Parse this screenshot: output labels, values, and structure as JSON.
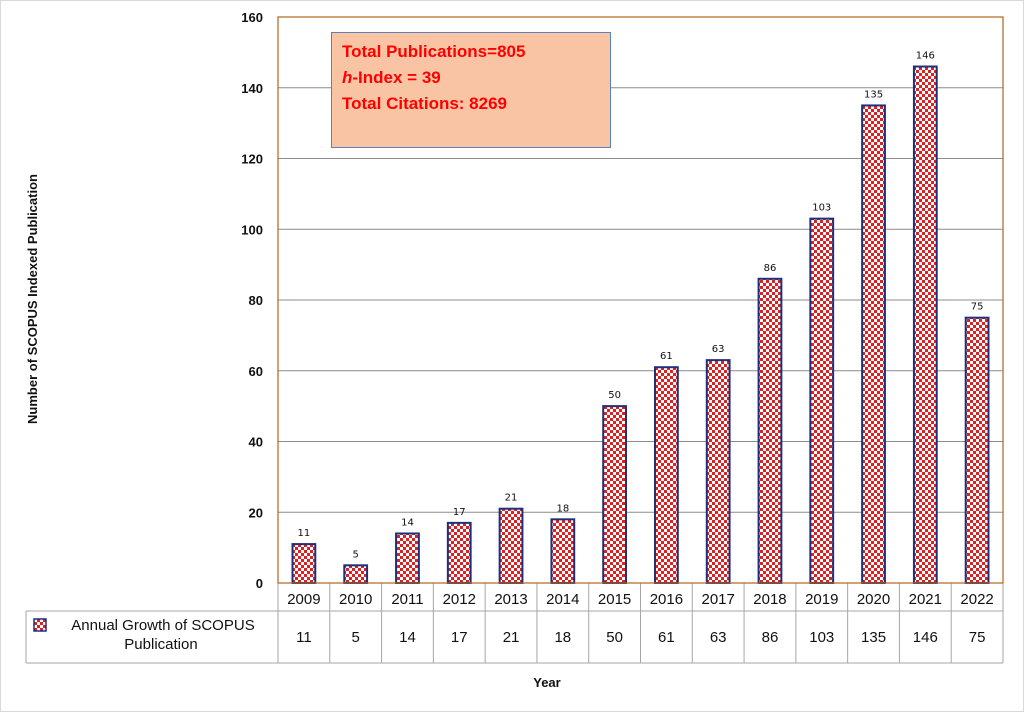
{
  "chart_data": {
    "type": "bar",
    "categories": [
      "2009",
      "2010",
      "2011",
      "2012",
      "2013",
      "2014",
      "2015",
      "2016",
      "2017",
      "2018",
      "2019",
      "2020",
      "2021",
      "2022"
    ],
    "series": [
      {
        "name": "Annual Growth of SCOPUS Publication",
        "values": [
          11,
          5,
          14,
          17,
          21,
          18,
          50,
          61,
          63,
          86,
          103,
          135,
          146,
          75
        ]
      }
    ],
    "xlabel": "Year",
    "ylabel": "Number of SCOPUS Indexed Publication",
    "ylim": [
      0,
      160
    ],
    "yticks": [
      0,
      20,
      40,
      60,
      80,
      100,
      120,
      140,
      160
    ],
    "grid": true,
    "data_table": true,
    "legend_placement": "data-table",
    "annotation": {
      "line1": "Total Publications=805",
      "line2_italic": "h",
      "line2_rest": "-Index = 39",
      "line3": "Total Citations:  8269"
    },
    "colors": {
      "bar_fill_a": "#ffffff",
      "bar_fill_b": "#e02020",
      "bar_border": "#1f2f7a",
      "plot_border": "#b5651d",
      "annotation_bg": "#f8c4a4",
      "annotation_text": "#ff0000"
    }
  }
}
